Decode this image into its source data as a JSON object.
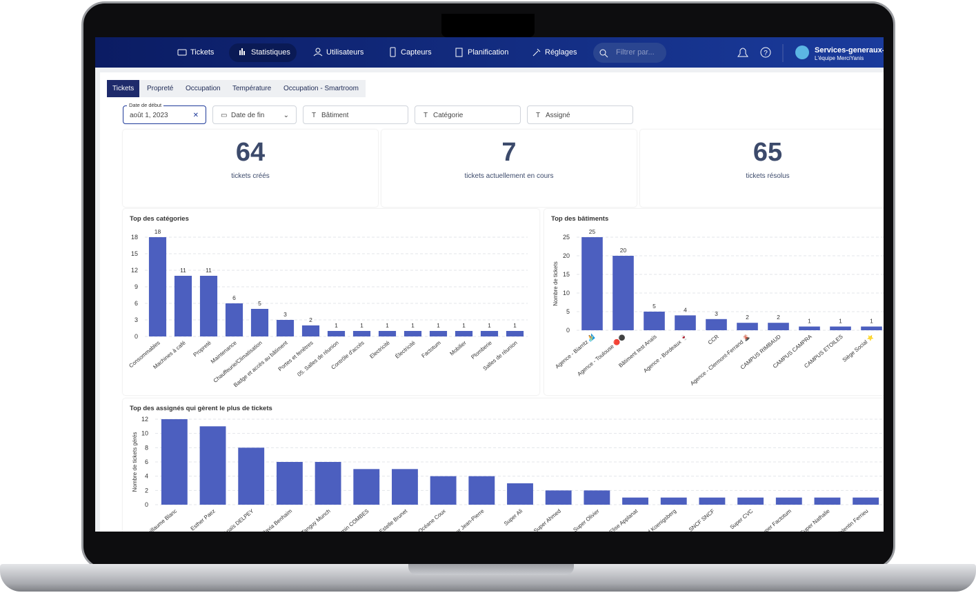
{
  "nav": {
    "items": [
      "Tickets",
      "Statistiques",
      "Utilisateurs",
      "Capteurs",
      "Planification",
      "Réglages"
    ],
    "search_placeholder": "Filtrer par...",
    "user_name": "Services-generaux-",
    "user_team": "L'équipe MerciYanis"
  },
  "tabs": [
    "Tickets",
    "Propreté",
    "Occupation",
    "Température",
    "Occupation - Smartroom"
  ],
  "filters": {
    "start_date_label": "Date de début",
    "start_date": "août 1, 2023",
    "end_date": "Date de fin",
    "building": "Bâtiment",
    "category": "Catégorie",
    "assignee": "Assigné"
  },
  "stats": [
    {
      "value": 64,
      "label": "tickets créés"
    },
    {
      "value": 7,
      "label": "tickets actuellement en cours"
    },
    {
      "value": 65,
      "label": "tickets résolus"
    }
  ],
  "charts": [
    {
      "type": "bar",
      "title": "Top des catégories",
      "categories": [
        "Consommables",
        "Machines à café",
        "Propreté",
        "Maintenance",
        "Chauffeurie/Climatisation",
        "Badge et accès au bâtiment",
        "Portes et fenêtres",
        "05. Salles de réunion",
        "Contrôle d'accès",
        "Electricité",
        "Électricité",
        "Factotum",
        "Mobilier",
        "Plomberie",
        "Salles de réunion"
      ],
      "values": [
        18,
        11,
        11,
        6,
        5,
        3,
        2,
        1,
        1,
        1,
        1,
        1,
        1,
        1,
        1
      ],
      "color": "#4c5fbf",
      "ylim": [
        0,
        18
      ],
      "yticks": [
        0,
        3,
        6,
        9,
        12,
        15,
        18
      ],
      "grid": true,
      "data_labels": true
    },
    {
      "type": "bar",
      "title": "Top des bâtiments",
      "ylabel": "Nombre de tickets",
      "categories": [
        "Agence - Biarritz 🏄",
        "Agence - Toulouse 🔴⚫",
        "Bâtiment test Anaïs",
        "Agence - Bordeaux 🍷",
        "CCR",
        "Agence - Clermont-Ferrand 🌋",
        "CAMPUS RIMBAUD",
        "CAMPUS CAMPRA",
        "CAMPUS ETOILES",
        "Siège Social ⭐"
      ],
      "values": [
        25,
        20,
        5,
        4,
        3,
        2,
        2,
        1,
        1,
        1
      ],
      "color": "#4c5fbf",
      "ylim": [
        0,
        25
      ],
      "yticks": [
        0,
        5,
        10,
        15,
        20,
        25
      ],
      "grid": true,
      "data_labels": true
    },
    {
      "type": "bar",
      "title": "Top des assignés qui gèrent le plus de tickets",
      "ylabel": "Nombre de tickets gérés",
      "categories": [
        "Guillaume Blanc",
        "Esther Paez",
        "Anaïs DELPEY",
        "Flavia Benhaim",
        "Tanguy Munch",
        "Benjamin COMBES",
        "Estelle Brunet",
        "Océane Coux",
        "Super Jean-Pierre",
        "Super Ali",
        "Super Ahmed",
        "Super Olivier",
        "Elise Applanat",
        "Bernard Koenigsberg",
        "SNCF SNCF",
        "Super CVC",
        "Super Factotum",
        "Super Nathalie",
        "Valentin Ferrieu"
      ],
      "values": [
        12,
        11,
        8,
        6,
        6,
        5,
        5,
        4,
        4,
        3,
        2,
        2,
        1,
        1,
        1,
        1,
        1,
        1,
        1
      ],
      "color": "#4c5fbf",
      "ylim": [
        0,
        12
      ],
      "yticks": [
        0,
        2,
        4,
        6,
        8,
        10,
        12
      ],
      "grid": true,
      "data_labels": false
    }
  ]
}
